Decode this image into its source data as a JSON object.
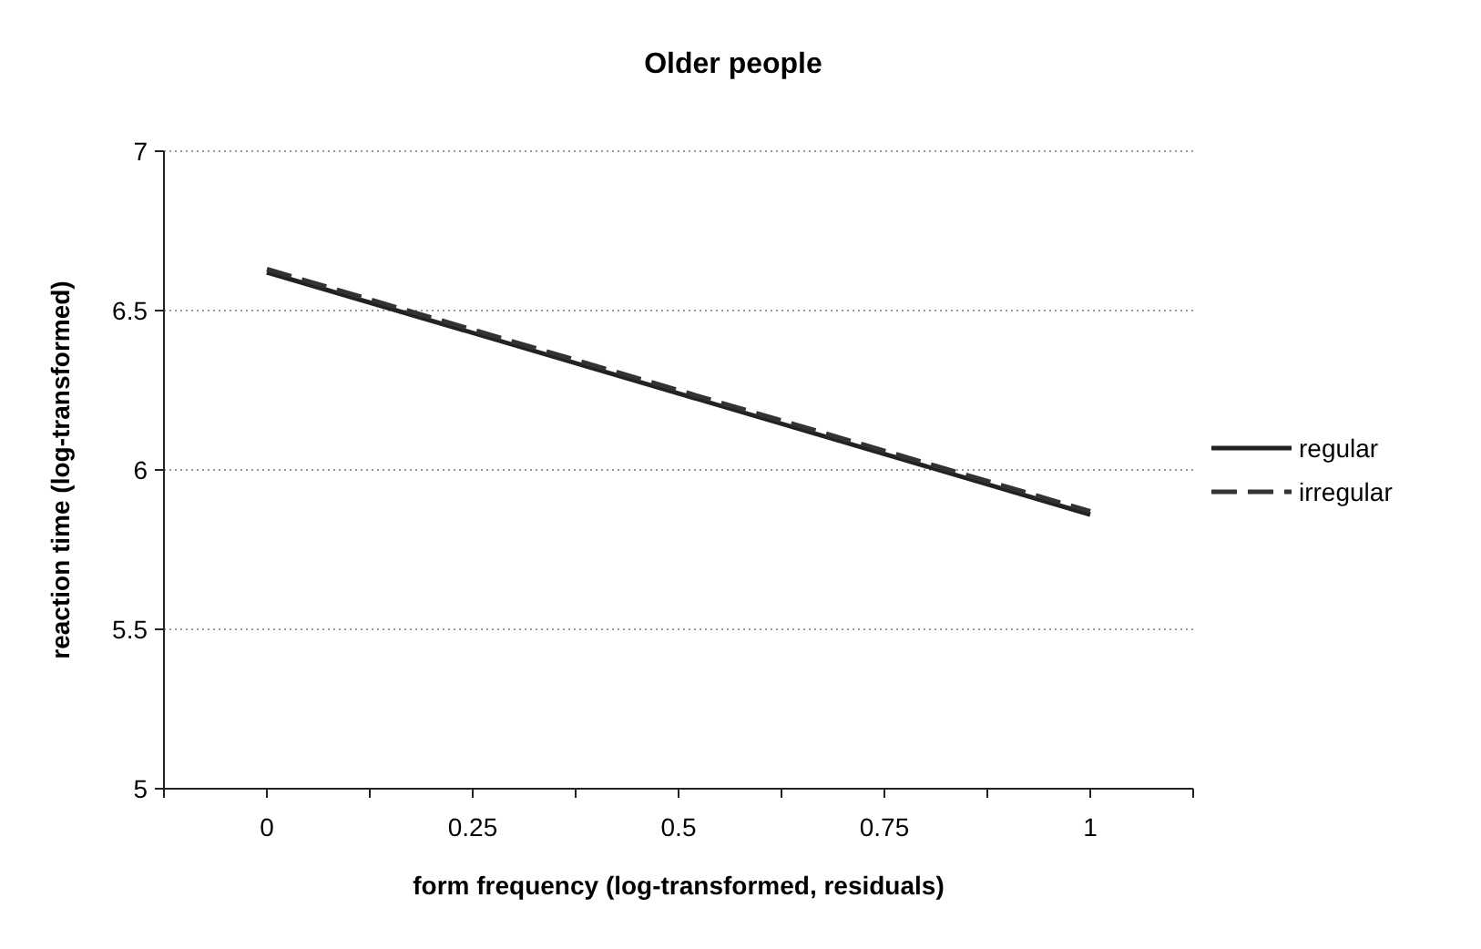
{
  "chart_data": {
    "type": "line",
    "title": "Older people",
    "xlabel": "form frequency (log-transformed, residuals)",
    "ylabel": "reaction time (log-transformed)",
    "xlim": [
      -0.125,
      1.125
    ],
    "xticks": [
      {
        "value": -0.125,
        "label": null
      },
      0,
      {
        "value": 0.125,
        "label": null
      },
      0.25,
      {
        "value": 0.375,
        "label": null
      },
      0.5,
      {
        "value": 0.625,
        "label": null
      },
      0.75,
      {
        "value": 0.875,
        "label": null
      },
      1,
      {
        "value": 1.125,
        "label": null
      }
    ],
    "ylim": [
      5,
      7
    ],
    "yticks": [
      5,
      5.5,
      6,
      6.5,
      7
    ],
    "grid": "y",
    "legend": "right",
    "x": [
      0,
      1
    ],
    "series": [
      {
        "name": "regular",
        "color": "#222222",
        "values": [
          6.62,
          5.86
        ],
        "line_style": "solid"
      },
      {
        "name": "irregular",
        "color": "#333333",
        "values": [
          6.63,
          5.87
        ],
        "line_style": "dashed"
      }
    ]
  }
}
